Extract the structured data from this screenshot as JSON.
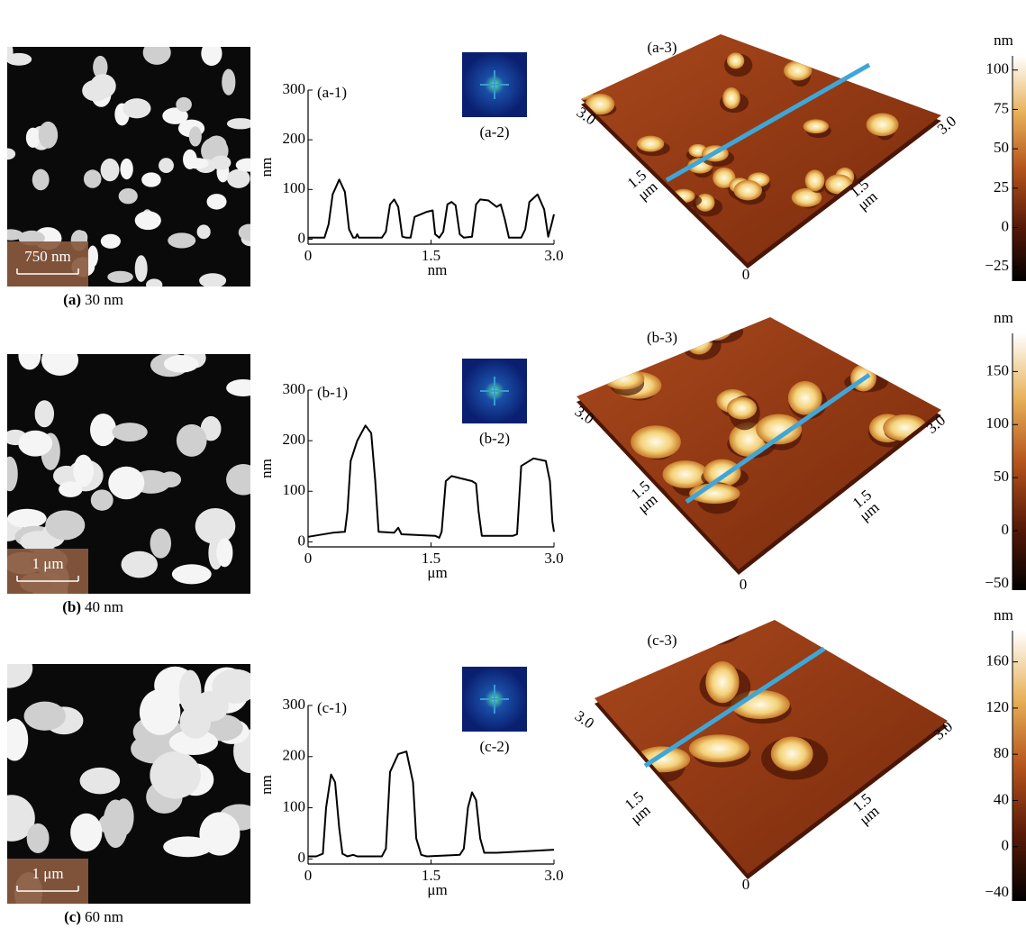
{
  "chart_data": [
    {
      "type": "line",
      "title": "(a-1)",
      "ylabel": "nm",
      "xlabel": "nm",
      "color": "#000000",
      "xlim": [
        0,
        3
      ],
      "ylim": [
        -10,
        300
      ],
      "xticks": [
        0,
        1.5,
        {
          "value": 3,
          "label": "3.0"
        }
      ],
      "yticks": [
        0,
        100,
        200,
        300
      ],
      "x": [
        0,
        0.2,
        0.25,
        0.3,
        0.38,
        0.45,
        0.5,
        0.55,
        0.58,
        0.6,
        0.62,
        0.9,
        0.95,
        1.0,
        1.05,
        1.1,
        1.15,
        1.2,
        1.25,
        1.3,
        1.45,
        1.52,
        1.55,
        1.6,
        1.65,
        1.7,
        1.75,
        1.8,
        1.85,
        1.9,
        2.0,
        2.05,
        2.1,
        2.2,
        2.3,
        2.35,
        2.4,
        2.45,
        2.6,
        2.65,
        2.7,
        2.8,
        2.88,
        2.93,
        2.97,
        3.0
      ],
      "values": [
        3,
        3,
        30,
        90,
        120,
        95,
        20,
        3,
        3,
        10,
        3,
        3,
        15,
        70,
        80,
        65,
        5,
        3,
        3,
        45,
        55,
        58,
        10,
        3,
        15,
        70,
        75,
        68,
        10,
        3,
        5,
        70,
        80,
        78,
        65,
        70,
        40,
        3,
        3,
        20,
        75,
        90,
        60,
        5,
        30,
        50
      ]
    },
    {
      "type": "line",
      "title": "(b-1)",
      "ylabel": "nm",
      "xlabel": "μm",
      "color": "#000000",
      "xlim": [
        0,
        3
      ],
      "ylim": [
        -10,
        300
      ],
      "xticks": [
        0,
        1.5,
        {
          "value": 3,
          "label": "3.0"
        }
      ],
      "yticks": [
        0,
        100,
        200,
        300
      ],
      "x": [
        0,
        0.3,
        0.45,
        0.48,
        0.52,
        0.6,
        0.7,
        0.77,
        0.82,
        0.86,
        1.05,
        1.1,
        1.14,
        1.55,
        1.6,
        1.63,
        1.68,
        1.75,
        2.0,
        2.05,
        2.08,
        2.12,
        2.45,
        2.5,
        2.55,
        2.6,
        2.75,
        2.9,
        2.95,
        2.98,
        3.0
      ],
      "values": [
        10,
        18,
        20,
        60,
        160,
        200,
        230,
        215,
        120,
        20,
        18,
        28,
        15,
        12,
        8,
        20,
        120,
        130,
        120,
        115,
        60,
        12,
        12,
        12,
        15,
        150,
        165,
        160,
        120,
        40,
        20
      ]
    },
    {
      "type": "line",
      "title": "(c-1)",
      "ylabel": "nm",
      "xlabel": "μm",
      "color": "#000000",
      "xlim": [
        0,
        3
      ],
      "ylim": [
        -10,
        300
      ],
      "xticks": [
        0,
        1.5,
        {
          "value": 3,
          "label": "3.0"
        }
      ],
      "yticks": [
        0,
        100,
        200,
        300
      ],
      "x": [
        0,
        0.1,
        0.18,
        0.22,
        0.28,
        0.33,
        0.38,
        0.42,
        0.48,
        0.55,
        0.6,
        0.9,
        0.95,
        1.0,
        1.1,
        1.2,
        1.28,
        1.32,
        1.38,
        1.45,
        1.85,
        1.9,
        1.95,
        2.0,
        2.05,
        2.1,
        2.15,
        2.3,
        3.0
      ],
      "values": [
        5,
        5,
        10,
        100,
        165,
        150,
        60,
        10,
        5,
        8,
        5,
        5,
        20,
        170,
        205,
        210,
        150,
        40,
        8,
        5,
        8,
        20,
        100,
        130,
        115,
        40,
        12,
        12,
        18
      ]
    }
  ],
  "rows": [
    {
      "caption_letter": "(a)",
      "caption_text": "30 nm",
      "scale_bar": "750 nm",
      "fft_label": "(a-2)",
      "render_label": "(a-3)",
      "render_axis_labels": [
        "3.0",
        "1.5",
        "μm",
        "0",
        "1.5",
        "μm",
        "3.0"
      ],
      "colorbar": {
        "unit": "nm",
        "clim": [
          -34,
          109
        ],
        "ticks": [
          100,
          75,
          50,
          25,
          0,
          {
            "value": -25,
            "label": "−25"
          }
        ]
      }
    },
    {
      "caption_letter": "(b)",
      "caption_text": "40 nm",
      "scale_bar": "1 μm",
      "fft_label": "(b-2)",
      "render_label": "(b-3)",
      "render_axis_labels": [
        "3.0",
        "1.5",
        "μm",
        "0",
        "1.5",
        "μm",
        "3.0"
      ],
      "colorbar": {
        "unit": "nm",
        "clim": [
          -56,
          186
        ],
        "ticks": [
          150,
          100,
          50,
          0,
          {
            "value": -50,
            "label": "−50"
          }
        ]
      }
    },
    {
      "caption_letter": "(c)",
      "caption_text": "60 nm",
      "scale_bar": "1 μm",
      "fft_label": "(c-2)",
      "render_label": "(c-3)",
      "render_axis_labels": [
        "3.0",
        "1.5",
        "μm",
        "0",
        "1.5",
        "μm",
        "3.0"
      ],
      "colorbar": {
        "unit": "nm",
        "clim": [
          -47,
          187
        ],
        "ticks": [
          160,
          120,
          80,
          40,
          0,
          {
            "value": -40,
            "label": "−40"
          }
        ]
      }
    }
  ]
}
